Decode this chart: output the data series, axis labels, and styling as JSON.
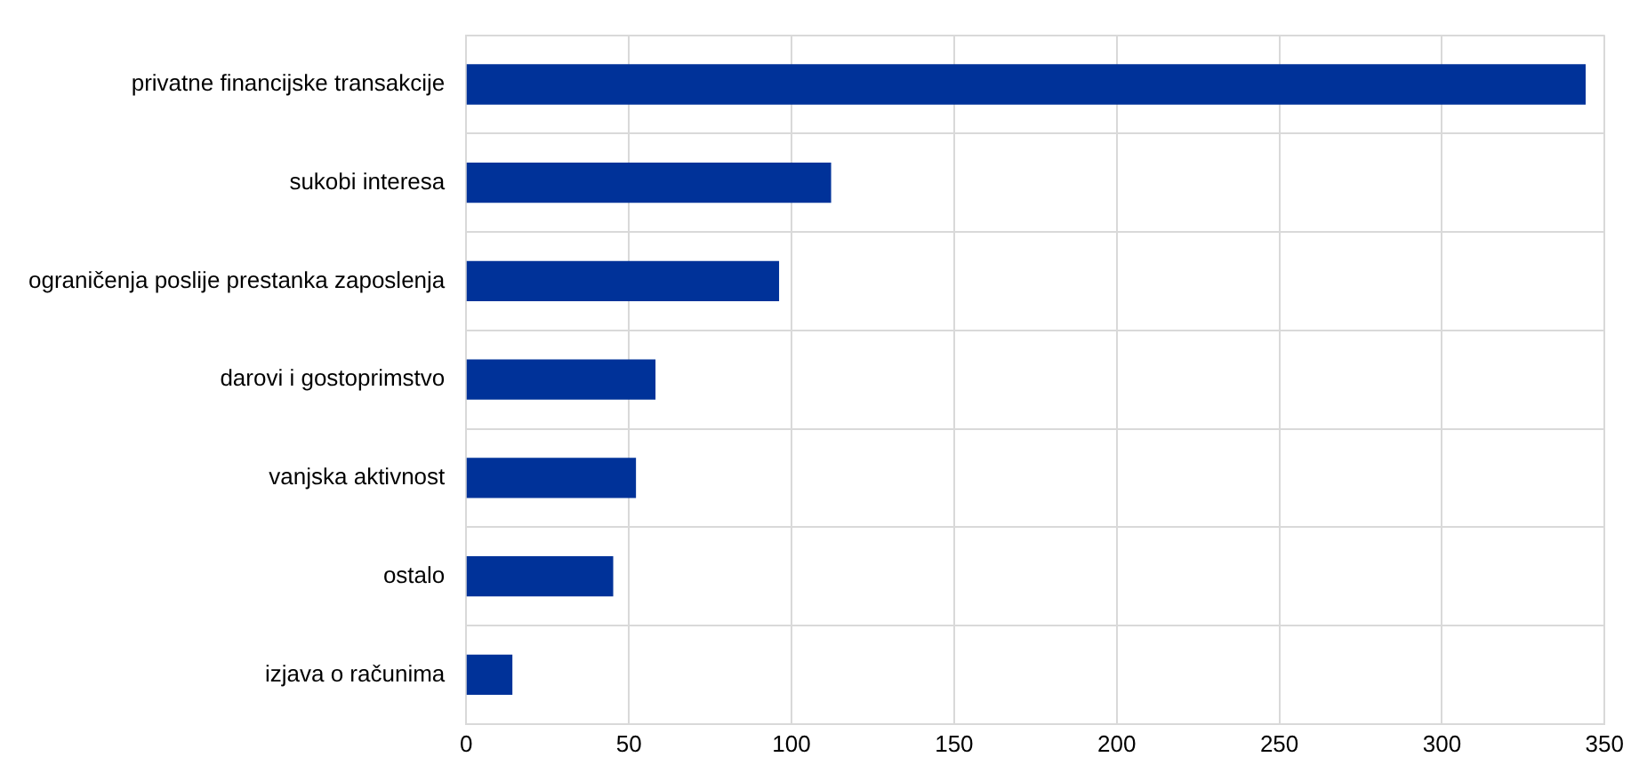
{
  "chart_data": {
    "type": "bar",
    "orientation": "horizontal",
    "categories": [
      "privatne financijske transakcije",
      "sukobi interesa",
      "ograničenja poslije prestanka zaposlenja",
      "darovi i gostoprimstvo",
      "vanjska aktivnost",
      "ostalo",
      "izjava o računima"
    ],
    "values": [
      344,
      112,
      96,
      58,
      52,
      45,
      14
    ],
    "color": "#003299",
    "xlim": [
      0,
      350
    ],
    "xticks": [
      0,
      50,
      100,
      150,
      200,
      250,
      300,
      350
    ],
    "grid": true,
    "legend": false
  }
}
